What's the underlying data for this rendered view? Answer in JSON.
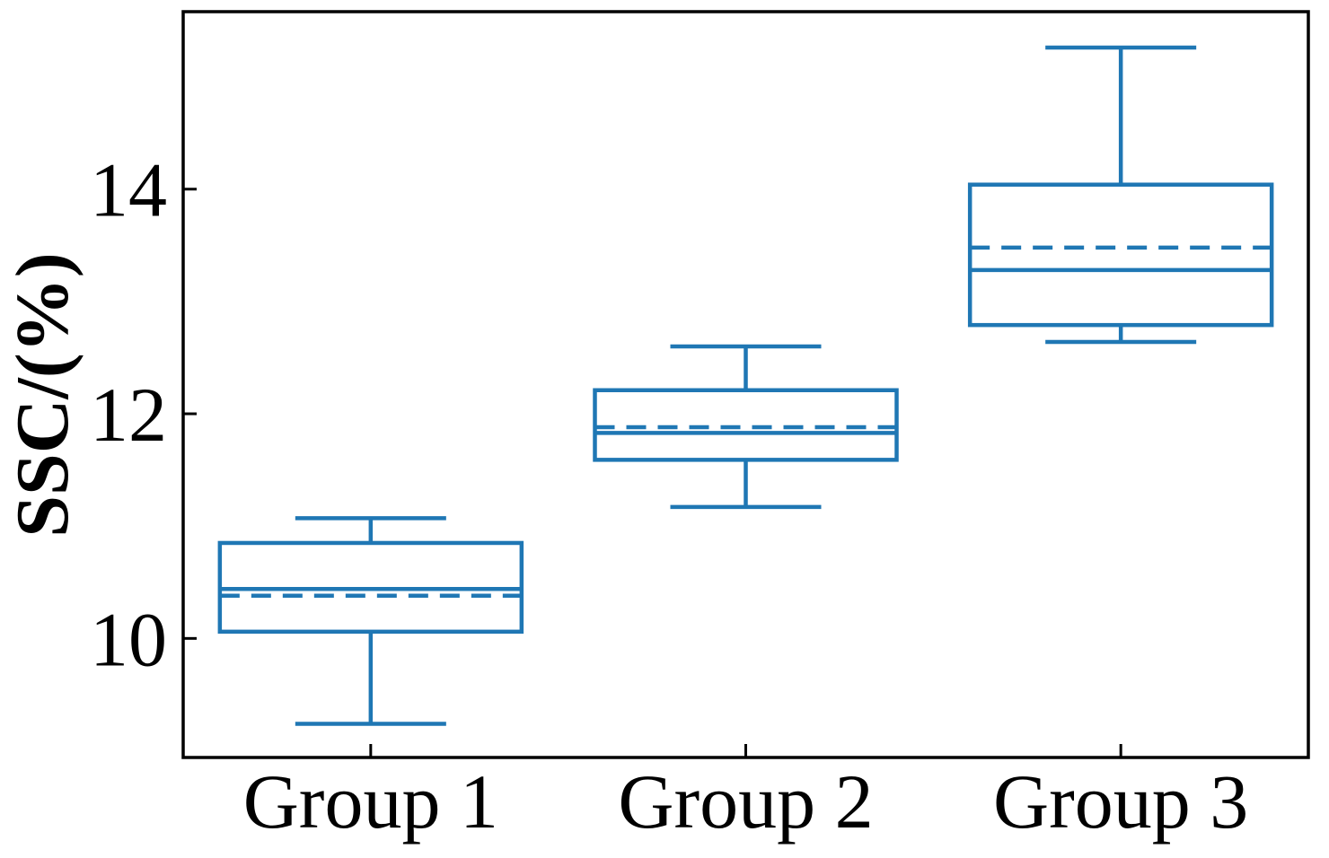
{
  "page": {
    "background": "#ffffff"
  },
  "chart_data": {
    "type": "boxplot",
    "title": "",
    "xlabel": "",
    "ylabel": "SSC/(%)",
    "categories": [
      "Group 1",
      "Group 2",
      "Group 3"
    ],
    "yticks": [
      10,
      12,
      14
    ],
    "ylim": [
      8.94,
      15.58
    ],
    "grid": false,
    "legend": "none",
    "colors": {
      "box": "#1f77b4",
      "axis": "#000000",
      "text": "#000000"
    },
    "style_notes": {
      "median": "solid horizontal line inside box",
      "mean": "dashed horizontal line inside box",
      "ticks": "inward, on left and bottom spines only",
      "frame": "full black rectangle border"
    },
    "series": [
      {
        "name": "Group 1",
        "whisker_low": 9.24,
        "q1": 10.06,
        "median": 10.44,
        "mean": 10.38,
        "q3": 10.85,
        "whisker_high": 11.07
      },
      {
        "name": "Group 2",
        "whisker_low": 11.17,
        "q1": 11.59,
        "median": 11.83,
        "mean": 11.88,
        "q3": 12.21,
        "whisker_high": 12.6
      },
      {
        "name": "Group 3",
        "whisker_low": 12.64,
        "q1": 12.79,
        "median": 13.28,
        "mean": 13.48,
        "q3": 14.04,
        "whisker_high": 15.26
      }
    ]
  }
}
